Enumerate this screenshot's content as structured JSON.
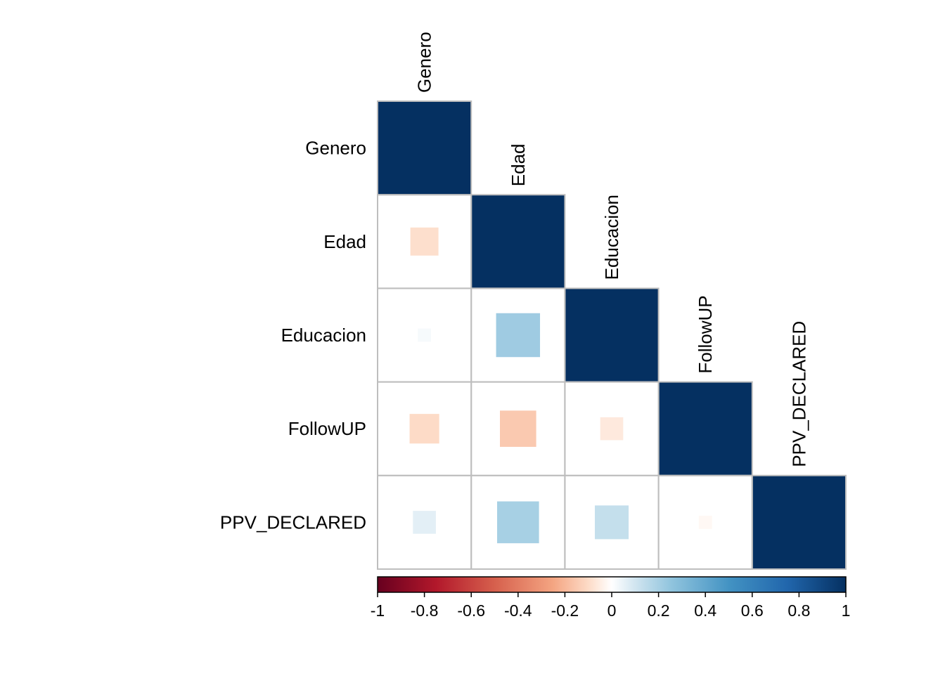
{
  "chart_data": {
    "type": "heatmap",
    "subtype": "correlation-matrix-lower-triangle",
    "marker": "square",
    "variables": [
      "Genero",
      "Edad",
      "Educacion",
      "FollowUP",
      "PPV_DECLARED"
    ],
    "matrix": [
      [
        1.0,
        -0.09,
        0.02,
        -0.1,
        0.06
      ],
      [
        -0.09,
        1.0,
        0.22,
        -0.15,
        0.2
      ],
      [
        0.02,
        0.22,
        1.0,
        -0.06,
        0.13
      ],
      [
        -0.1,
        -0.15,
        -0.06,
        1.0,
        -0.02
      ],
      [
        0.06,
        0.2,
        0.13,
        -0.02,
        1.0
      ]
    ],
    "colorbar": {
      "range": [
        -1,
        1
      ],
      "tick_labels": [
        "-1",
        "-0.8",
        "-0.6",
        "-0.4",
        "-0.2",
        "0",
        "0.2",
        "0.4",
        "0.6",
        "0.8",
        "1"
      ],
      "stops": [
        {
          "value": -1.0,
          "color": "#67001F"
        },
        {
          "value": -0.75,
          "color": "#B2182B"
        },
        {
          "value": -0.5,
          "color": "#D6604D"
        },
        {
          "value": -0.25,
          "color": "#F4A582"
        },
        {
          "value": -0.1,
          "color": "#FDDBC7"
        },
        {
          "value": 0.0,
          "color": "#FFFFFF"
        },
        {
          "value": 0.1,
          "color": "#D1E5F0"
        },
        {
          "value": 0.25,
          "color": "#92C5DE"
        },
        {
          "value": 0.5,
          "color": "#4393C3"
        },
        {
          "value": 0.75,
          "color": "#2166AC"
        },
        {
          "value": 1.0,
          "color": "#053061"
        }
      ]
    },
    "grid_color": "#BEBEBE",
    "legend_position": "bottom"
  }
}
